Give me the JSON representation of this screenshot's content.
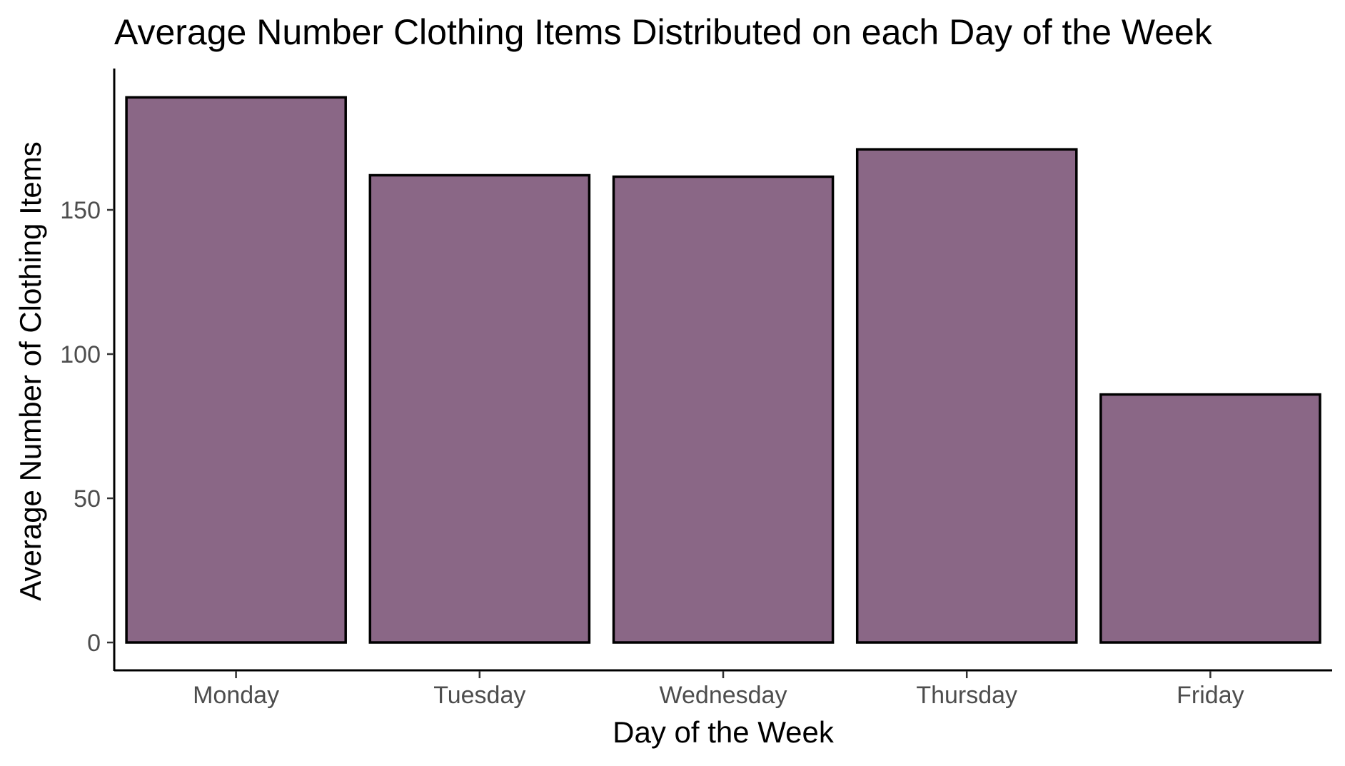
{
  "chart_data": {
    "type": "bar",
    "title": "Average Number Clothing Items Distributed on each Day of the Week",
    "xlabel": "Day of the Week",
    "ylabel": "Average Number of Clothing Items",
    "categories": [
      "Monday",
      "Tuesday",
      "Wednesday",
      "Thursday",
      "Friday"
    ],
    "values": [
      189,
      162,
      161.5,
      171,
      86
    ],
    "ylim": [
      0,
      199
    ],
    "yticks": [
      0,
      50,
      100,
      150
    ],
    "ytick_labels": [
      "0",
      "50",
      "100",
      "150"
    ],
    "grid": false,
    "legend": "none",
    "bar_fill": "#8a6786",
    "bar_outline": "#000000"
  }
}
